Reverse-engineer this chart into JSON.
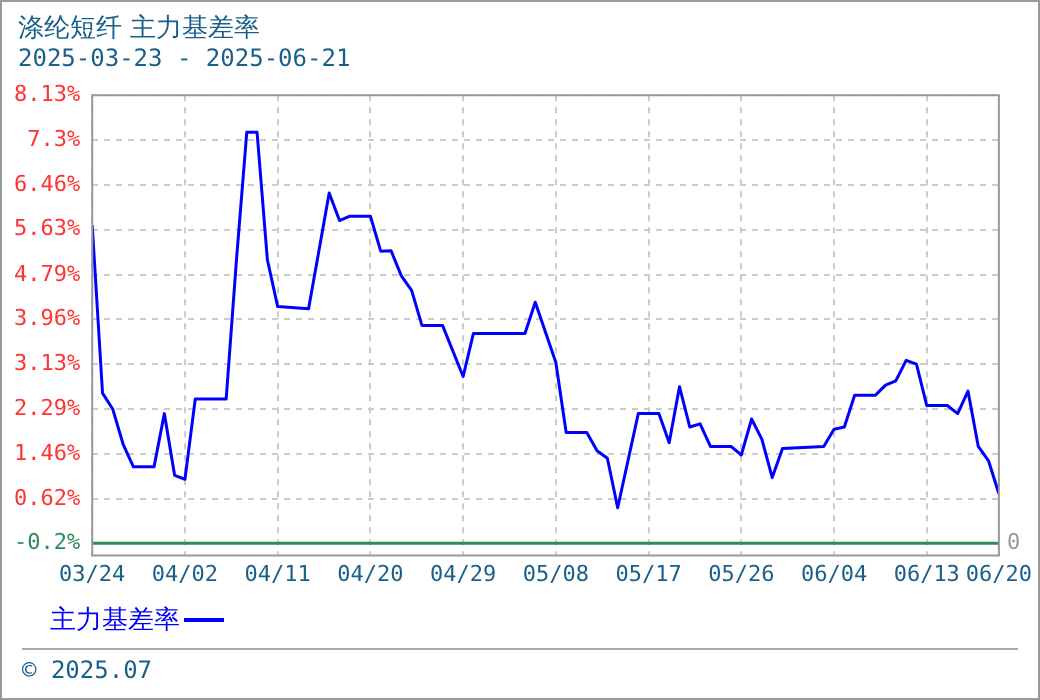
{
  "chart_data": {
    "type": "line",
    "title": "涤纶短纤  主力基差率",
    "subtitle": "2025-03-23 - 2025-06-21",
    "annotations": [
      "© 2025.07"
    ],
    "x": [
      "2025-03-24",
      "2025-03-25",
      "2025-03-26",
      "2025-03-27",
      "2025-03-28",
      "2025-03-30",
      "2025-03-31",
      "2025-04-01",
      "2025-04-02",
      "2025-04-03",
      "2025-04-06",
      "2025-04-07",
      "2025-04-08",
      "2025-04-09",
      "2025-04-10",
      "2025-04-11",
      "2025-04-14",
      "2025-04-16",
      "2025-04-17",
      "2025-04-18",
      "2025-04-20",
      "2025-04-21",
      "2025-04-22",
      "2025-04-23",
      "2025-04-24",
      "2025-04-25",
      "2025-04-27",
      "2025-04-29",
      "2025-04-30",
      "2025-05-05",
      "2025-05-06",
      "2025-05-08",
      "2025-05-09",
      "2025-05-11",
      "2025-05-12",
      "2025-05-13",
      "2025-05-14",
      "2025-05-16",
      "2025-05-18",
      "2025-05-19",
      "2025-05-20",
      "2025-05-21",
      "2025-05-22",
      "2025-05-23",
      "2025-05-25",
      "2025-05-26",
      "2025-05-27",
      "2025-05-28",
      "2025-05-29",
      "2025-05-30",
      "2025-06-03",
      "2025-06-04",
      "2025-06-05",
      "2025-06-06",
      "2025-06-08",
      "2025-06-09",
      "2025-06-10",
      "2025-06-11",
      "2025-06-12",
      "2025-06-13",
      "2025-06-15",
      "2025-06-16",
      "2025-06-17",
      "2025-06-18",
      "2025-06-19",
      "2025-06-20"
    ],
    "series": [
      {
        "name": "主力基差率",
        "color": "#0000ff",
        "values": [
          5.71,
          2.59,
          2.29,
          1.64,
          1.22,
          1.22,
          2.21,
          1.06,
          0.99,
          2.48,
          2.48,
          5.07,
          7.44,
          7.44,
          5.07,
          4.2,
          4.16,
          6.31,
          5.8,
          5.88,
          5.88,
          5.23,
          5.24,
          4.77,
          4.5,
          3.85,
          3.85,
          2.9,
          3.7,
          3.7,
          4.28,
          3.16,
          1.86,
          1.86,
          1.52,
          1.38,
          0.46,
          2.21,
          2.21,
          1.67,
          2.71,
          1.96,
          2.02,
          1.6,
          1.6,
          1.44,
          2.11,
          1.73,
          1.02,
          1.56,
          1.6,
          1.92,
          1.96,
          2.55,
          2.55,
          2.74,
          2.82,
          3.2,
          3.13,
          2.36,
          2.36,
          2.21,
          2.63,
          1.6,
          1.33,
          0.72
        ]
      }
    ],
    "xlim": [
      "2025-03-24",
      "2025-06-20"
    ],
    "xticks": [
      {
        "value": "2025-03-24",
        "label": "03/24"
      },
      {
        "value": "2025-04-02",
        "label": "04/02"
      },
      {
        "value": "2025-04-11",
        "label": "04/11"
      },
      {
        "value": "2025-04-20",
        "label": "04/20"
      },
      {
        "value": "2025-04-29",
        "label": "04/29"
      },
      {
        "value": "2025-05-08",
        "label": "05/08"
      },
      {
        "value": "2025-05-17",
        "label": "05/17"
      },
      {
        "value": "2025-05-26",
        "label": "05/26"
      },
      {
        "value": "2025-06-04",
        "label": "06/04"
      },
      {
        "value": "2025-06-13",
        "label": "06/13"
      },
      {
        "value": "2025-06-20",
        "label": "06/20"
      }
    ],
    "ylim": [
      -0.43,
      8.13
    ],
    "yticks": [
      {
        "value": -0.2,
        "label": "-0.2%"
      },
      {
        "value": 0.62,
        "label": "0.62%"
      },
      {
        "value": 1.46,
        "label": "1.46%"
      },
      {
        "value": 2.29,
        "label": "2.29%"
      },
      {
        "value": 3.13,
        "label": "3.13%"
      },
      {
        "value": 3.96,
        "label": "3.96%"
      },
      {
        "value": 4.79,
        "label": "4.79%"
      },
      {
        "value": 5.63,
        "label": "5.63%"
      },
      {
        "value": 6.46,
        "label": "6.46%"
      },
      {
        "value": 7.3,
        "label": "7.3%"
      },
      {
        "value": 8.13,
        "label": "8.13%"
      }
    ],
    "ref_lines": [
      {
        "axis": "y",
        "value": -0.2,
        "label": "0",
        "color": "#2e8b57"
      }
    ],
    "grid": true,
    "legend": "bottom left",
    "marker": "none",
    "line_style": "solid"
  }
}
